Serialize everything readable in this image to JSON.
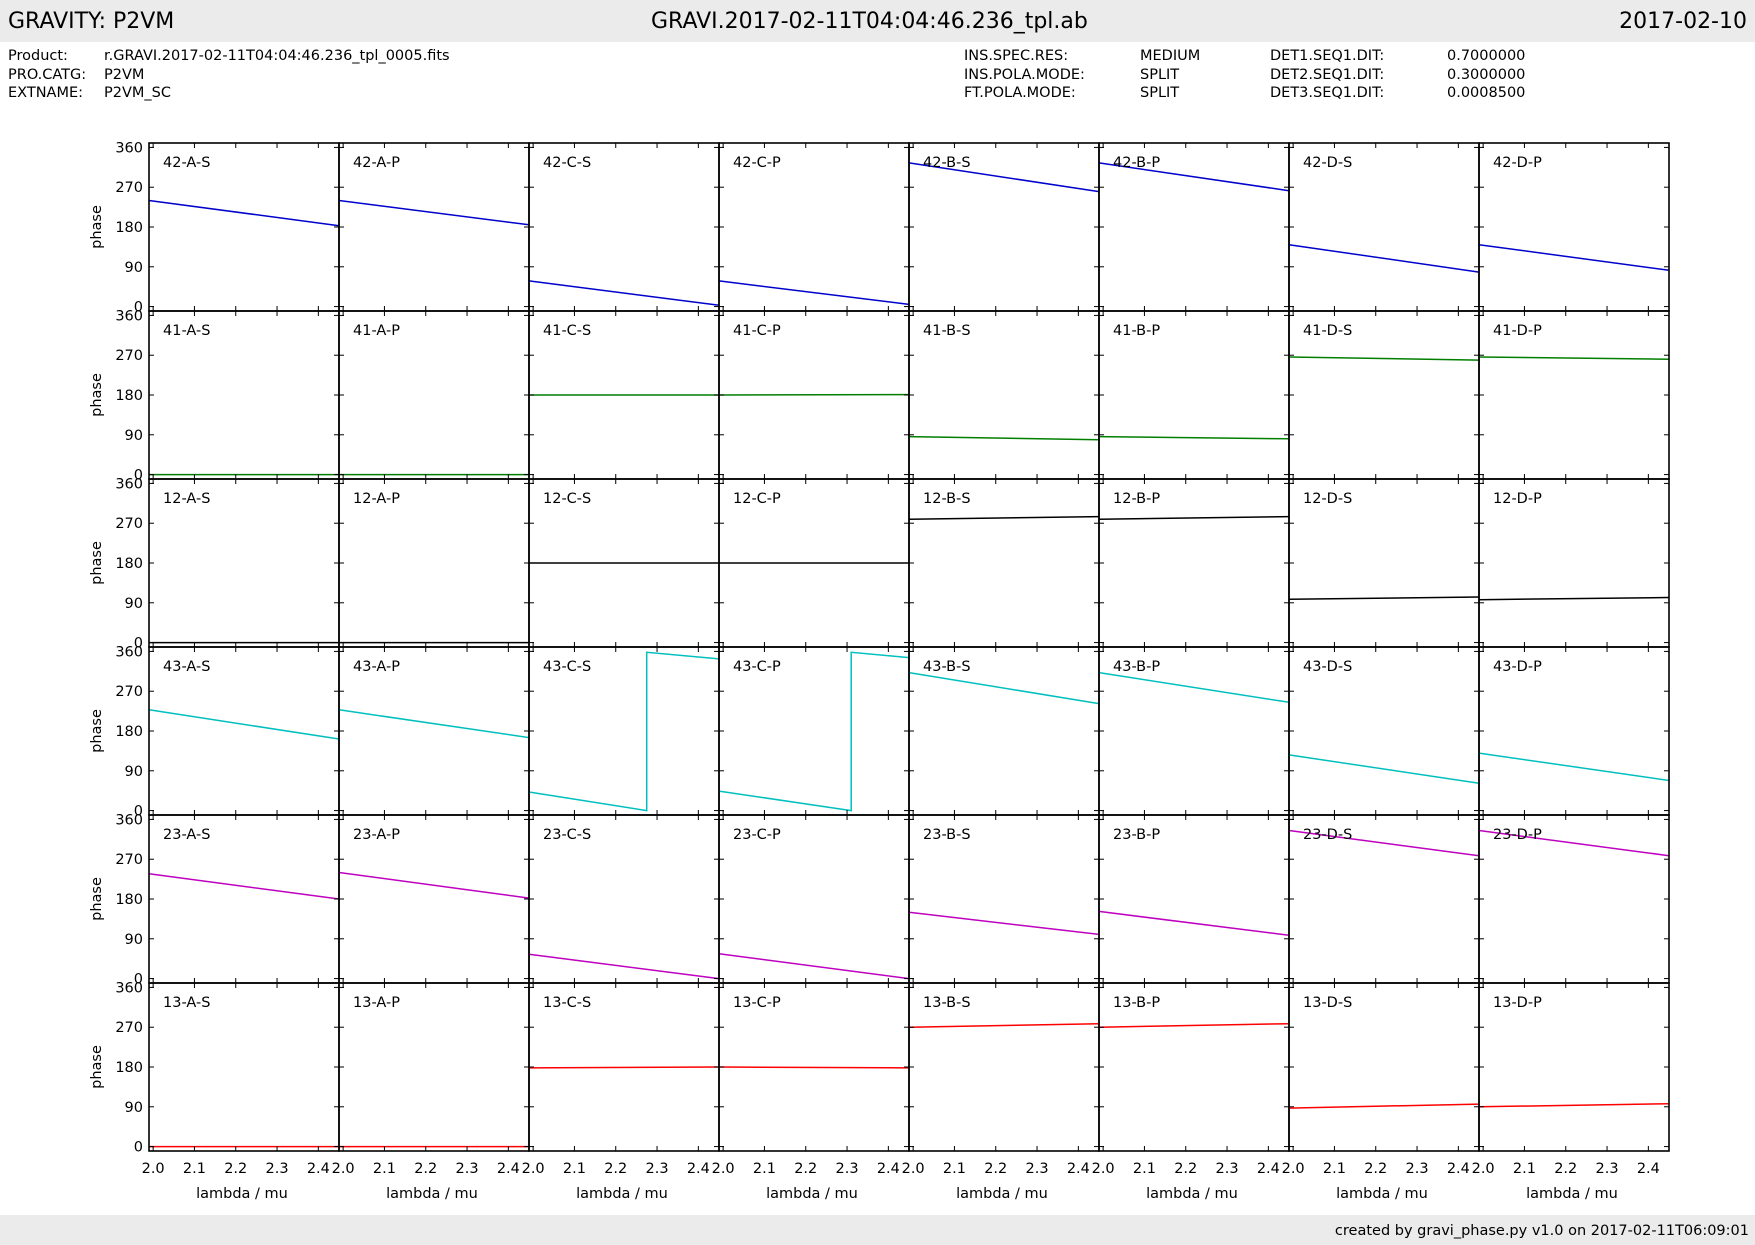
{
  "header": {
    "left": "GRAVITY: P2VM",
    "center": "GRAVI.2017-02-11T04:04:46.236_tpl.ab",
    "right": "2017-02-10"
  },
  "meta_left": {
    "labels": [
      "Product:",
      "PRO.CATG:",
      "EXTNAME:"
    ],
    "values": [
      "r.GRAVI.2017-02-11T04:04:46.236_tpl_0005.fits",
      "P2VM",
      "P2VM_SC"
    ]
  },
  "meta_mid": {
    "labels": [
      "INS.SPEC.RES:",
      "INS.POLA.MODE:",
      "FT.POLA.MODE:"
    ],
    "values": [
      "MEDIUM",
      "SPLIT",
      "SPLIT"
    ]
  },
  "meta_right": {
    "labels": [
      "DET1.SEQ1.DIT:",
      "DET2.SEQ1.DIT:",
      "DET3.SEQ1.DIT:"
    ],
    "values": [
      "0.7000000",
      "0.3000000",
      "0.0008500"
    ]
  },
  "footer": "created by gravi_phase.py v1.0 on 2017-02-11T06:09:01",
  "colors": {
    "row_42": "#0000cc",
    "row_41": "#007f00",
    "row_12": "#000000",
    "row_43": "#00bfbf",
    "row_23": "#bf00bf",
    "row_13": "#ff0000"
  },
  "chart_data": {
    "type": "line",
    "layout": "grid of 6 rows x 8 columns, shared axes",
    "xlabel": "lambda / mu",
    "ylabel": "phase",
    "xlim": [
      1.99,
      2.45
    ],
    "ylim": [
      -10,
      370
    ],
    "xticks": [
      2.0,
      2.1,
      2.2,
      2.3,
      2.4
    ],
    "xtick_labels": [
      "2.0",
      "2.1",
      "2.2",
      "2.3",
      "2.4"
    ],
    "yticks": [
      0,
      90,
      180,
      270,
      360
    ],
    "ytick_labels": [
      "0",
      "90",
      "180",
      "270",
      "360"
    ],
    "x": [
      1.99,
      2.45
    ],
    "grid": false,
    "panels": [
      {
        "label": "42-A-S",
        "color": "#0000cc",
        "y": [
          240,
          183
        ]
      },
      {
        "label": "42-A-P",
        "color": "#0000cc",
        "y": [
          240,
          185
        ]
      },
      {
        "label": "42-C-S",
        "color": "#0000cc",
        "y": [
          58,
          3
        ]
      },
      {
        "label": "42-C-P",
        "color": "#0000cc",
        "y": [
          58,
          5
        ]
      },
      {
        "label": "42-B-S",
        "color": "#0000cc",
        "y": [
          325,
          260
        ]
      },
      {
        "label": "42-B-P",
        "color": "#0000cc",
        "y": [
          325,
          262
        ]
      },
      {
        "label": "42-D-S",
        "color": "#0000cc",
        "y": [
          140,
          78
        ]
      },
      {
        "label": "42-D-P",
        "color": "#0000cc",
        "y": [
          140,
          82
        ]
      },
      {
        "label": "41-A-S",
        "color": "#007f00",
        "y": [
          0,
          0
        ]
      },
      {
        "label": "41-A-P",
        "color": "#007f00",
        "y": [
          0,
          0
        ]
      },
      {
        "label": "41-C-S",
        "color": "#007f00",
        "y": [
          180,
          180
        ]
      },
      {
        "label": "41-C-P",
        "color": "#007f00",
        "y": [
          180,
          181
        ]
      },
      {
        "label": "41-B-S",
        "color": "#007f00",
        "y": [
          86,
          79
        ]
      },
      {
        "label": "41-B-P",
        "color": "#007f00",
        "y": [
          86,
          81
        ]
      },
      {
        "label": "41-D-S",
        "color": "#007f00",
        "y": [
          266,
          259
        ]
      },
      {
        "label": "41-D-P",
        "color": "#007f00",
        "y": [
          266,
          261
        ]
      },
      {
        "label": "12-A-S",
        "color": "#000000",
        "y": [
          0,
          0
        ]
      },
      {
        "label": "12-A-P",
        "color": "#000000",
        "y": [
          0,
          0
        ]
      },
      {
        "label": "12-C-S",
        "color": "#000000",
        "y": [
          180,
          180
        ]
      },
      {
        "label": "12-C-P",
        "color": "#000000",
        "y": [
          180,
          180
        ]
      },
      {
        "label": "12-B-S",
        "color": "#000000",
        "y": [
          279,
          285
        ]
      },
      {
        "label": "12-B-P",
        "color": "#000000",
        "y": [
          279,
          285
        ]
      },
      {
        "label": "12-D-S",
        "color": "#000000",
        "y": [
          98,
          103
        ]
      },
      {
        "label": "12-D-P",
        "color": "#000000",
        "y": [
          97,
          102
        ]
      },
      {
        "label": "43-A-S",
        "color": "#00bfbf",
        "y": [
          228,
          162
        ]
      },
      {
        "label": "43-A-P",
        "color": "#00bfbf",
        "y": [
          228,
          165
        ]
      },
      {
        "label": "43-C-S",
        "color": "#00bfbf",
        "x": [
          1.99,
          2.275,
          2.275,
          2.45
        ],
        "y": [
          42,
          0,
          358,
          343
        ]
      },
      {
        "label": "43-C-P",
        "color": "#00bfbf",
        "x": [
          1.99,
          2.31,
          2.31,
          2.45
        ],
        "y": [
          44,
          0,
          358,
          346
        ]
      },
      {
        "label": "43-B-S",
        "color": "#00bfbf",
        "y": [
          312,
          242
        ]
      },
      {
        "label": "43-B-P",
        "color": "#00bfbf",
        "y": [
          312,
          245
        ]
      },
      {
        "label": "43-D-S",
        "color": "#00bfbf",
        "y": [
          126,
          62
        ]
      },
      {
        "label": "43-D-P",
        "color": "#00bfbf",
        "y": [
          130,
          68
        ]
      },
      {
        "label": "23-A-S",
        "color": "#bf00bf",
        "y": [
          237,
          180
        ]
      },
      {
        "label": "23-A-P",
        "color": "#bf00bf",
        "y": [
          240,
          182
        ]
      },
      {
        "label": "23-C-S",
        "color": "#bf00bf",
        "y": [
          55,
          0
        ]
      },
      {
        "label": "23-C-P",
        "color": "#bf00bf",
        "y": [
          56,
          0
        ]
      },
      {
        "label": "23-B-S",
        "color": "#bf00bf",
        "y": [
          150,
          100
        ]
      },
      {
        "label": "23-B-P",
        "color": "#bf00bf",
        "y": [
          152,
          98
        ]
      },
      {
        "label": "23-D-S",
        "color": "#bf00bf",
        "y": [
          335,
          278
        ]
      },
      {
        "label": "23-D-P",
        "color": "#bf00bf",
        "y": [
          335,
          278
        ]
      },
      {
        "label": "13-A-S",
        "color": "#ff0000",
        "y": [
          0,
          0
        ]
      },
      {
        "label": "13-A-P",
        "color": "#ff0000",
        "y": [
          0,
          0
        ]
      },
      {
        "label": "13-C-S",
        "color": "#ff0000",
        "y": [
          178,
          180
        ]
      },
      {
        "label": "13-C-P",
        "color": "#ff0000",
        "y": [
          180,
          178
        ]
      },
      {
        "label": "13-B-S",
        "color": "#ff0000",
        "y": [
          270,
          278
        ]
      },
      {
        "label": "13-B-P",
        "color": "#ff0000",
        "y": [
          270,
          278
        ]
      },
      {
        "label": "13-D-S",
        "color": "#ff0000",
        "y": [
          87,
          96
        ]
      },
      {
        "label": "13-D-P",
        "color": "#ff0000",
        "y": [
          90,
          97
        ]
      }
    ]
  }
}
